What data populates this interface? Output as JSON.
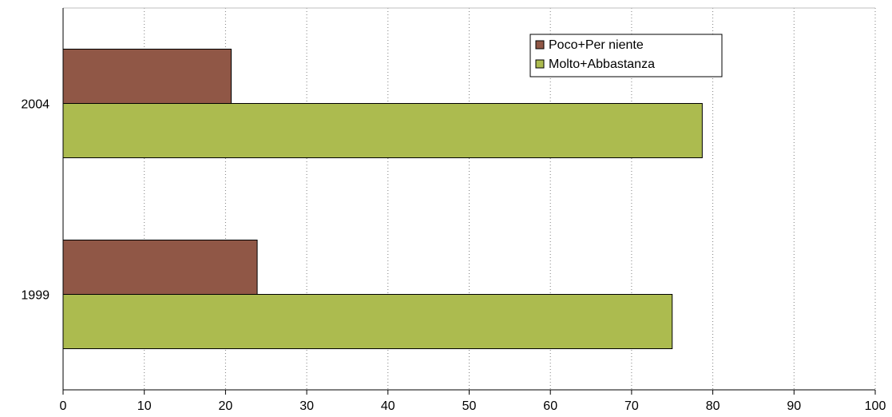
{
  "chart_data": {
    "type": "bar",
    "orientation": "horizontal",
    "title": "",
    "xlabel": "",
    "ylabel": "",
    "categories": [
      "1999",
      "2004"
    ],
    "series": [
      {
        "name": "Molto+Abbastanza",
        "values": [
          75,
          78.7
        ],
        "color": "#acbb4f"
      },
      {
        "name": "Poco+Per niente",
        "values": [
          23.9,
          20.7
        ],
        "color": "#905746"
      }
    ],
    "xlim": [
      0,
      100
    ],
    "xticks": [
      "0",
      "10",
      "20",
      "30",
      "40",
      "50",
      "60",
      "70",
      "80",
      "90",
      "100"
    ],
    "grid": "vertical dotted",
    "legend_position": "top-right"
  }
}
